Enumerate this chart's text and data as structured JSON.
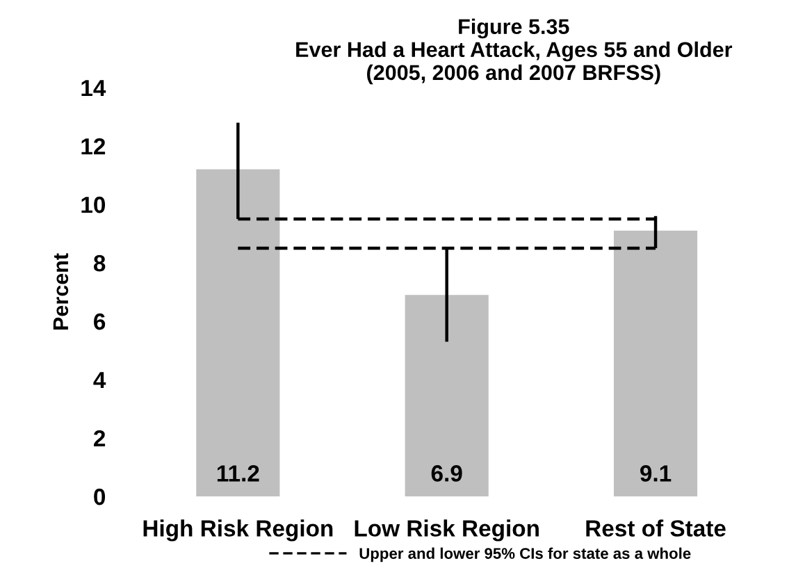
{
  "chart_data": {
    "type": "bar",
    "title": "Figure 5.35\nEver Had a Heart Attack, Ages 55 and Older\n(2005, 2006 and 2007 BRFSS)",
    "ylabel": "Percent",
    "categories": [
      "High Risk Region",
      "Low Risk Region",
      "Rest of State"
    ],
    "values": [
      11.2,
      6.9,
      9.1
    ],
    "color": "#bfbfbf",
    "errors": [
      [
        9.5,
        12.8
      ],
      [
        5.3,
        8.5
      ],
      [
        8.5,
        9.6
      ]
    ],
    "data_labels": true,
    "ylim": [
      0,
      14
    ],
    "yticks": [
      0,
      2,
      4,
      6,
      8,
      10,
      12,
      14
    ],
    "grid": false,
    "ref_lines": [
      {
        "axis": "y",
        "value": 9.5,
        "label": "Upper and lower 95% CIs for state as a whole",
        "line_style": "dashed",
        "color": "#000000"
      },
      {
        "axis": "y",
        "value": 8.5,
        "line_style": "dashed",
        "color": "#000000"
      }
    ],
    "legend": "bottom"
  }
}
